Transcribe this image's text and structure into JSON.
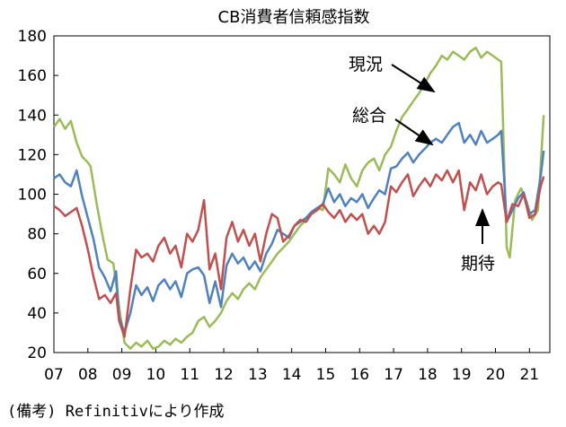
{
  "chart_data": {
    "type": "line",
    "title": "CB消費者信頼感指数",
    "xlabel": "",
    "ylabel": "",
    "ylim": [
      20,
      180
    ],
    "yticks": [
      20,
      40,
      60,
      80,
      100,
      120,
      140,
      160,
      180
    ],
    "xlim": [
      2007.0,
      2021.6
    ],
    "xtick_labels": [
      "07",
      "08",
      "09",
      "10",
      "11",
      "12",
      "13",
      "14",
      "15",
      "16",
      "17",
      "18",
      "19",
      "20",
      "21"
    ],
    "grid": false,
    "colors": {
      "現況": "#9bbb59",
      "総合": "#4f81bd",
      "期待": "#c0504d"
    },
    "series": [
      {
        "name": "現況",
        "points": [
          [
            2007.0,
            134
          ],
          [
            2007.17,
            138
          ],
          [
            2007.33,
            133
          ],
          [
            2007.5,
            137
          ],
          [
            2007.67,
            126
          ],
          [
            2007.83,
            119
          ],
          [
            2008.0,
            116
          ],
          [
            2008.08,
            114
          ],
          [
            2008.25,
            96
          ],
          [
            2008.42,
            80
          ],
          [
            2008.58,
            67
          ],
          [
            2008.75,
            65
          ],
          [
            2008.92,
            43
          ],
          [
            2009.08,
            25
          ],
          [
            2009.25,
            22
          ],
          [
            2009.42,
            25
          ],
          [
            2009.58,
            23
          ],
          [
            2009.75,
            26
          ],
          [
            2009.92,
            22
          ],
          [
            2010.08,
            23
          ],
          [
            2010.25,
            26
          ],
          [
            2010.42,
            24
          ],
          [
            2010.58,
            27
          ],
          [
            2010.75,
            25
          ],
          [
            2010.92,
            28
          ],
          [
            2011.08,
            30
          ],
          [
            2011.25,
            36
          ],
          [
            2011.42,
            38
          ],
          [
            2011.58,
            33
          ],
          [
            2011.75,
            36
          ],
          [
            2011.92,
            40
          ],
          [
            2012.08,
            46
          ],
          [
            2012.25,
            50
          ],
          [
            2012.42,
            47
          ],
          [
            2012.58,
            52
          ],
          [
            2012.75,
            55
          ],
          [
            2012.92,
            52
          ],
          [
            2013.08,
            58
          ],
          [
            2013.25,
            62
          ],
          [
            2013.42,
            66
          ],
          [
            2013.58,
            70
          ],
          [
            2013.75,
            73
          ],
          [
            2013.92,
            76
          ],
          [
            2014.08,
            80
          ],
          [
            2014.25,
            84
          ],
          [
            2014.42,
            87
          ],
          [
            2014.58,
            91
          ],
          [
            2014.75,
            93
          ],
          [
            2014.92,
            92
          ],
          [
            2015.08,
            113
          ],
          [
            2015.25,
            110
          ],
          [
            2015.42,
            106
          ],
          [
            2015.58,
            115
          ],
          [
            2015.75,
            108
          ],
          [
            2015.92,
            104
          ],
          [
            2016.08,
            112
          ],
          [
            2016.25,
            116
          ],
          [
            2016.42,
            118
          ],
          [
            2016.58,
            112
          ],
          [
            2016.75,
            120
          ],
          [
            2016.92,
            124
          ],
          [
            2017.08,
            132
          ],
          [
            2017.25,
            139
          ],
          [
            2017.42,
            143
          ],
          [
            2017.58,
            147
          ],
          [
            2017.75,
            151
          ],
          [
            2017.92,
            156
          ],
          [
            2018.08,
            161
          ],
          [
            2018.25,
            165
          ],
          [
            2018.42,
            170
          ],
          [
            2018.58,
            168
          ],
          [
            2018.75,
            172
          ],
          [
            2018.92,
            170
          ],
          [
            2019.08,
            168
          ],
          [
            2019.25,
            172
          ],
          [
            2019.42,
            174
          ],
          [
            2019.58,
            169
          ],
          [
            2019.75,
            172
          ],
          [
            2019.92,
            170
          ],
          [
            2020.08,
            168
          ],
          [
            2020.17,
            167
          ],
          [
            2020.33,
            73
          ],
          [
            2020.42,
            68
          ],
          [
            2020.58,
            97
          ],
          [
            2020.75,
            103
          ],
          [
            2020.92,
            96
          ],
          [
            2021.08,
            87
          ],
          [
            2021.25,
            92
          ],
          [
            2021.42,
            140
          ]
        ]
      },
      {
        "name": "総合",
        "points": [
          [
            2007.0,
            108
          ],
          [
            2007.17,
            110
          ],
          [
            2007.33,
            106
          ],
          [
            2007.5,
            104
          ],
          [
            2007.67,
            112
          ],
          [
            2007.83,
            99
          ],
          [
            2008.0,
            88
          ],
          [
            2008.17,
            77
          ],
          [
            2008.33,
            63
          ],
          [
            2008.5,
            58
          ],
          [
            2008.67,
            51
          ],
          [
            2008.83,
            61
          ],
          [
            2008.92,
            38
          ],
          [
            2009.08,
            30
          ],
          [
            2009.25,
            40
          ],
          [
            2009.42,
            54
          ],
          [
            2009.58,
            49
          ],
          [
            2009.75,
            53
          ],
          [
            2009.92,
            46
          ],
          [
            2010.08,
            54
          ],
          [
            2010.25,
            57
          ],
          [
            2010.42,
            52
          ],
          [
            2010.58,
            56
          ],
          [
            2010.75,
            48
          ],
          [
            2010.92,
            60
          ],
          [
            2011.08,
            62
          ],
          [
            2011.25,
            63
          ],
          [
            2011.42,
            59
          ],
          [
            2011.58,
            45
          ],
          [
            2011.75,
            56
          ],
          [
            2011.92,
            43
          ],
          [
            2012.08,
            64
          ],
          [
            2012.25,
            70
          ],
          [
            2012.42,
            65
          ],
          [
            2012.58,
            68
          ],
          [
            2012.75,
            62
          ],
          [
            2012.92,
            66
          ],
          [
            2013.08,
            61
          ],
          [
            2013.25,
            70
          ],
          [
            2013.42,
            75
          ],
          [
            2013.58,
            82
          ],
          [
            2013.75,
            80
          ],
          [
            2013.92,
            78
          ],
          [
            2014.08,
            84
          ],
          [
            2014.25,
            86
          ],
          [
            2014.42,
            88
          ],
          [
            2014.58,
            91
          ],
          [
            2014.75,
            93
          ],
          [
            2014.92,
            95
          ],
          [
            2015.08,
            103
          ],
          [
            2015.25,
            96
          ],
          [
            2015.42,
            100
          ],
          [
            2015.58,
            94
          ],
          [
            2015.75,
            98
          ],
          [
            2015.92,
            96
          ],
          [
            2016.08,
            100
          ],
          [
            2016.25,
            93
          ],
          [
            2016.42,
            98
          ],
          [
            2016.58,
            102
          ],
          [
            2016.75,
            100
          ],
          [
            2016.92,
            113
          ],
          [
            2017.08,
            114
          ],
          [
            2017.25,
            118
          ],
          [
            2017.42,
            121
          ],
          [
            2017.58,
            116
          ],
          [
            2017.75,
            120
          ],
          [
            2017.92,
            123
          ],
          [
            2018.08,
            126
          ],
          [
            2018.25,
            128
          ],
          [
            2018.42,
            126
          ],
          [
            2018.58,
            130
          ],
          [
            2018.75,
            134
          ],
          [
            2018.92,
            136
          ],
          [
            2019.08,
            126
          ],
          [
            2019.25,
            130
          ],
          [
            2019.42,
            125
          ],
          [
            2019.58,
            132
          ],
          [
            2019.75,
            126
          ],
          [
            2019.92,
            128
          ],
          [
            2020.08,
            130
          ],
          [
            2020.17,
            132
          ],
          [
            2020.33,
            86
          ],
          [
            2020.5,
            92
          ],
          [
            2020.67,
            98
          ],
          [
            2020.83,
            101
          ],
          [
            2021.0,
            90
          ],
          [
            2021.17,
            92
          ],
          [
            2021.33,
            109
          ],
          [
            2021.42,
            122
          ]
        ]
      },
      {
        "name": "期待",
        "points": [
          [
            2007.0,
            94
          ],
          [
            2007.17,
            92
          ],
          [
            2007.33,
            89
          ],
          [
            2007.5,
            91
          ],
          [
            2007.67,
            93
          ],
          [
            2007.83,
            84
          ],
          [
            2008.0,
            72
          ],
          [
            2008.17,
            58
          ],
          [
            2008.33,
            47
          ],
          [
            2008.5,
            49
          ],
          [
            2008.67,
            45
          ],
          [
            2008.83,
            50
          ],
          [
            2008.92,
            36
          ],
          [
            2009.08,
            28
          ],
          [
            2009.25,
            52
          ],
          [
            2009.42,
            72
          ],
          [
            2009.58,
            68
          ],
          [
            2009.75,
            70
          ],
          [
            2009.92,
            66
          ],
          [
            2010.08,
            74
          ],
          [
            2010.25,
            78
          ],
          [
            2010.42,
            70
          ],
          [
            2010.58,
            74
          ],
          [
            2010.75,
            63
          ],
          [
            2010.92,
            80
          ],
          [
            2011.08,
            76
          ],
          [
            2011.25,
            82
          ],
          [
            2011.42,
            97
          ],
          [
            2011.58,
            62
          ],
          [
            2011.75,
            70
          ],
          [
            2011.92,
            52
          ],
          [
            2012.08,
            78
          ],
          [
            2012.25,
            86
          ],
          [
            2012.42,
            76
          ],
          [
            2012.58,
            82
          ],
          [
            2012.75,
            74
          ],
          [
            2012.92,
            80
          ],
          [
            2013.08,
            66
          ],
          [
            2013.25,
            80
          ],
          [
            2013.42,
            90
          ],
          [
            2013.58,
            88
          ],
          [
            2013.75,
            76
          ],
          [
            2013.92,
            79
          ],
          [
            2014.08,
            84
          ],
          [
            2014.25,
            87
          ],
          [
            2014.42,
            86
          ],
          [
            2014.58,
            90
          ],
          [
            2014.75,
            92
          ],
          [
            2014.92,
            95
          ],
          [
            2015.08,
            91
          ],
          [
            2015.25,
            88
          ],
          [
            2015.42,
            92
          ],
          [
            2015.58,
            86
          ],
          [
            2015.75,
            90
          ],
          [
            2015.92,
            87
          ],
          [
            2016.08,
            90
          ],
          [
            2016.25,
            80
          ],
          [
            2016.42,
            84
          ],
          [
            2016.58,
            80
          ],
          [
            2016.75,
            86
          ],
          [
            2016.92,
            104
          ],
          [
            2017.08,
            101
          ],
          [
            2017.25,
            106
          ],
          [
            2017.42,
            110
          ],
          [
            2017.58,
            99
          ],
          [
            2017.75,
            104
          ],
          [
            2017.92,
            108
          ],
          [
            2018.08,
            104
          ],
          [
            2018.25,
            110
          ],
          [
            2018.42,
            107
          ],
          [
            2018.58,
            112
          ],
          [
            2018.75,
            106
          ],
          [
            2018.92,
            112
          ],
          [
            2019.08,
            92
          ],
          [
            2019.25,
            106
          ],
          [
            2019.42,
            102
          ],
          [
            2019.58,
            110
          ],
          [
            2019.75,
            100
          ],
          [
            2019.92,
            104
          ],
          [
            2020.08,
            106
          ],
          [
            2020.17,
            105
          ],
          [
            2020.33,
            86
          ],
          [
            2020.5,
            95
          ],
          [
            2020.67,
            94
          ],
          [
            2020.83,
            100
          ],
          [
            2021.0,
            88
          ],
          [
            2021.17,
            90
          ],
          [
            2021.33,
            104
          ],
          [
            2021.42,
            109
          ]
        ]
      }
    ],
    "annotations": [
      {
        "text": "現況",
        "series": "現況"
      },
      {
        "text": "総合",
        "series": "総合"
      },
      {
        "text": "期待",
        "series": "期待"
      }
    ]
  },
  "footnote": "(備考) Refinitivにより作成"
}
